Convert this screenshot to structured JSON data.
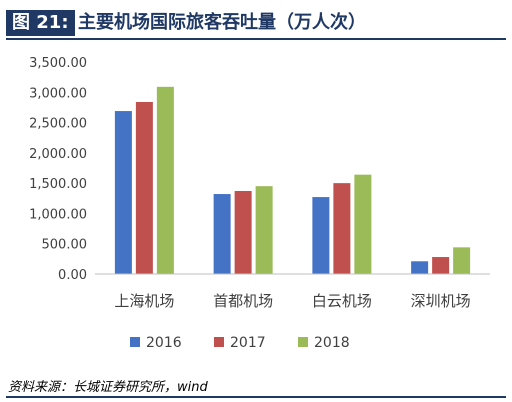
{
  "header": {
    "figure_label": "图 21:",
    "title": "主要机场国际旅客吞吐量（万人次）"
  },
  "source": "资料来源：长城证券研究所，wind",
  "colors": {
    "header_bg": "#1f3864",
    "rule": "#1f3864",
    "axis": "#bfbfbf",
    "text": "#404040"
  },
  "chart_data": {
    "type": "bar",
    "title": "",
    "xlabel": "",
    "ylabel": "",
    "categories": [
      "上海机场",
      "首都机场",
      "白云机场",
      "深圳机场"
    ],
    "series": [
      {
        "name": "2016",
        "color": "#4472c4",
        "values": [
          2690,
          1320,
          1270,
          210
        ]
      },
      {
        "name": "2017",
        "color": "#c0504d",
        "values": [
          2840,
          1370,
          1500,
          280
        ]
      },
      {
        "name": "2018",
        "color": "#9bbb59",
        "values": [
          3090,
          1450,
          1640,
          440
        ]
      }
    ],
    "ylim": [
      0,
      3500
    ],
    "yticks": [
      "0.00",
      "500.00",
      "1,000.00",
      "1,500.00",
      "2,000.00",
      "2,500.00",
      "3,000.00",
      "3,500.00"
    ],
    "grid": false,
    "legend": "bottom"
  }
}
